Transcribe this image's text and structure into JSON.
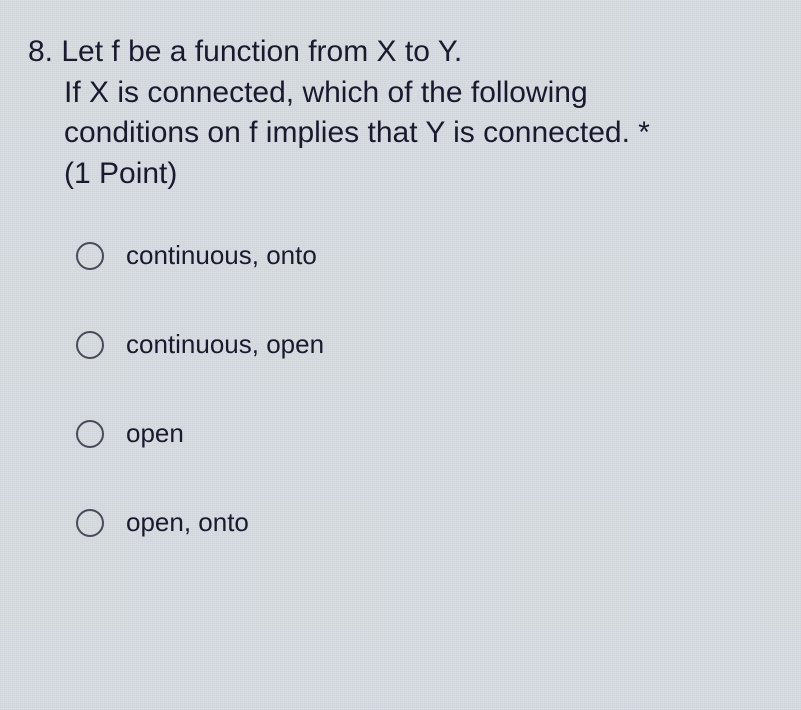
{
  "question": {
    "number": "8.",
    "line1": "Let f be a function from X to Y.",
    "line2": "If X is connected, which of the following",
    "line3": "conditions on f implies that Y is connected.",
    "asterisk": "*",
    "points": "(1 Point)"
  },
  "options": [
    {
      "label": "continuous, onto"
    },
    {
      "label": "continuous, open"
    },
    {
      "label": "open"
    },
    {
      "label": "open, onto"
    }
  ],
  "styling": {
    "background_color": "#d8dde3",
    "text_color": "#1a1a2e",
    "radio_border_color": "#4a4a5a",
    "question_fontsize": 30,
    "option_fontsize": 26,
    "radio_diameter": 28
  }
}
